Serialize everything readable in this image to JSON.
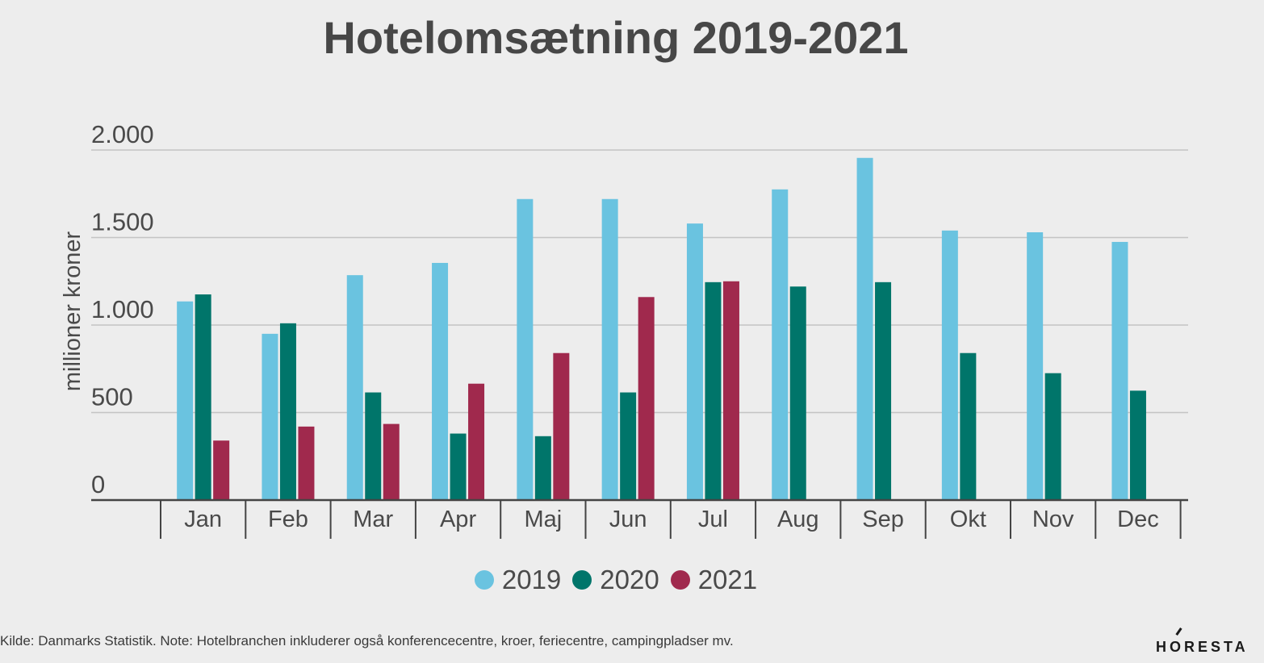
{
  "title": "Hotelomsætning 2019-2021",
  "source": "Kilde: Danmarks Statistik. Note: Hotelbranchen inkluderer også konferencecentre, kroer, feriecentre, campingpladser mv.",
  "logo_text": "HORESTA",
  "chart_data": {
    "type": "bar",
    "title": "Hotelomsætning 2019-2021",
    "xlabel": "",
    "ylabel": "millioner kroner",
    "ylim": [
      0,
      2000
    ],
    "yticks": [
      0,
      500,
      1000,
      1500,
      2000
    ],
    "ytick_labels": [
      "0",
      "500",
      "1.000",
      "1.500",
      "2.000"
    ],
    "grid": true,
    "legend_position": "bottom",
    "categories": [
      "Jan",
      "Feb",
      "Mar",
      "Apr",
      "Maj",
      "Jun",
      "Jul",
      "Aug",
      "Sep",
      "Okt",
      "Nov",
      "Dec"
    ],
    "series": [
      {
        "name": "2019",
        "color": "#6ac3e0",
        "values": [
          1135,
          950,
          1285,
          1355,
          1720,
          1720,
          1580,
          1775,
          1955,
          1540,
          1530,
          1475
        ]
      },
      {
        "name": "2020",
        "color": "#00756a",
        "values": [
          1175,
          1010,
          615,
          380,
          365,
          615,
          1245,
          1220,
          1245,
          840,
          725,
          625
        ]
      },
      {
        "name": "2021",
        "color": "#a0294d",
        "values": [
          340,
          420,
          435,
          665,
          840,
          1160,
          1250,
          null,
          null,
          null,
          null,
          null
        ]
      }
    ]
  }
}
